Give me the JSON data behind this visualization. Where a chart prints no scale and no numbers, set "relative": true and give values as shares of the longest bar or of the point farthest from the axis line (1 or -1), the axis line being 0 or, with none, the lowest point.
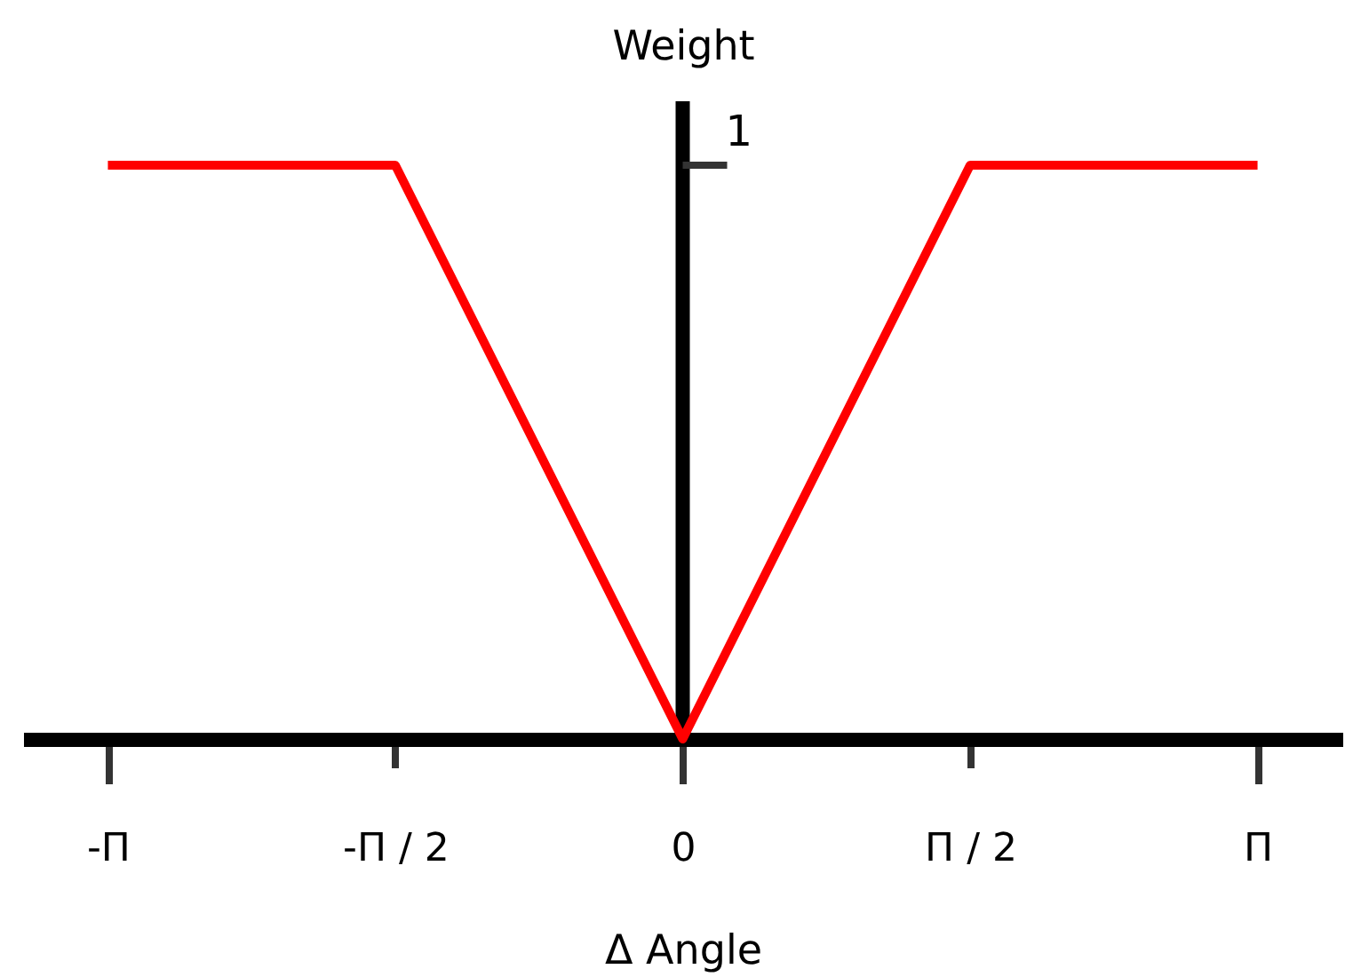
{
  "chart_data": {
    "type": "line",
    "xlabel": "Δ Angle",
    "ylabel": "Weight",
    "relative": true,
    "categories": [
      "-Π",
      "-Π / 2",
      "0",
      "Π / 2",
      "Π"
    ],
    "series": [
      {
        "color": "#ff0000",
        "values": [
          1,
          1,
          0,
          1,
          1
        ]
      }
    ],
    "ref_lines": [
      {
        "axis": "x",
        "value": "0",
        "color": "#000000"
      }
    ],
    "annotations": [
      {
        "text": "1",
        "x": "0",
        "y": 1
      }
    ]
  }
}
